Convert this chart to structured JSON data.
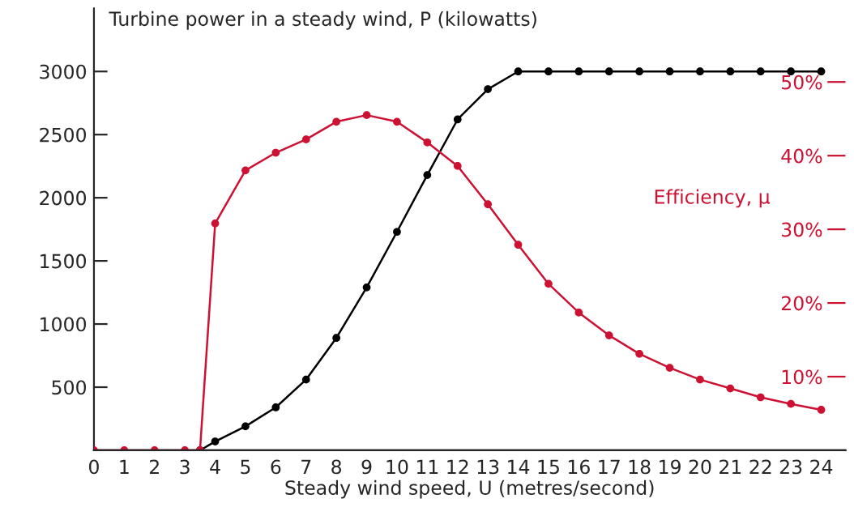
{
  "chart_data": {
    "type": "line",
    "title": "Turbine power in a steady wind, P (kilowatts)",
    "xlabel": "Steady wind speed, U (metres/second)",
    "y2label": "Efficiency, μ",
    "xlim": [
      0,
      24.8
    ],
    "xticks": [
      0,
      1,
      2,
      3,
      4,
      5,
      6,
      7,
      8,
      9,
      10,
      11,
      12,
      13,
      14,
      15,
      16,
      17,
      18,
      19,
      20,
      21,
      22,
      23,
      24
    ],
    "ylim": [
      0,
      3500
    ],
    "yticks": [
      500,
      1000,
      1500,
      2000,
      2500,
      3000
    ],
    "y2lim": [
      0,
      60
    ],
    "y2ticks": [
      {
        "value": 10,
        "label": "10%"
      },
      {
        "value": 20,
        "label": "20%"
      },
      {
        "value": 30,
        "label": "30%"
      },
      {
        "value": 40,
        "label": "40%"
      },
      {
        "value": 50,
        "label": "50%"
      }
    ],
    "marker": "circle",
    "line_style": "solid",
    "grid": false,
    "legend": false,
    "series": [
      {
        "color": "#000000",
        "x": [
          3.5,
          4,
          5,
          6,
          7,
          8,
          9,
          10,
          11,
          12,
          13,
          14,
          15,
          16,
          17,
          18,
          19,
          20,
          21,
          22,
          23,
          24
        ],
        "values": [
          0,
          70,
          190,
          340,
          560,
          890,
          1290,
          1730,
          2180,
          2620,
          2860,
          3000,
          3000,
          3000,
          3000,
          3000,
          3000,
          3000,
          3000,
          3000,
          3000,
          3000
        ]
      },
      {
        "color": "#cc1133",
        "axis": "y2",
        "x": [
          0,
          1,
          2,
          3,
          3.5,
          4,
          5,
          6,
          7,
          8,
          9,
          10,
          11,
          12,
          13,
          14,
          15,
          16,
          17,
          18,
          19,
          20,
          21,
          22,
          23,
          24
        ],
        "values": [
          0,
          0,
          0,
          0,
          0,
          30.8,
          38.0,
          40.4,
          42.2,
          44.6,
          45.5,
          44.6,
          41.8,
          38.6,
          33.4,
          27.9,
          22.6,
          18.7,
          15.6,
          13.1,
          11.2,
          9.6,
          8.4,
          7.2,
          6.3,
          5.5
        ]
      }
    ]
  }
}
